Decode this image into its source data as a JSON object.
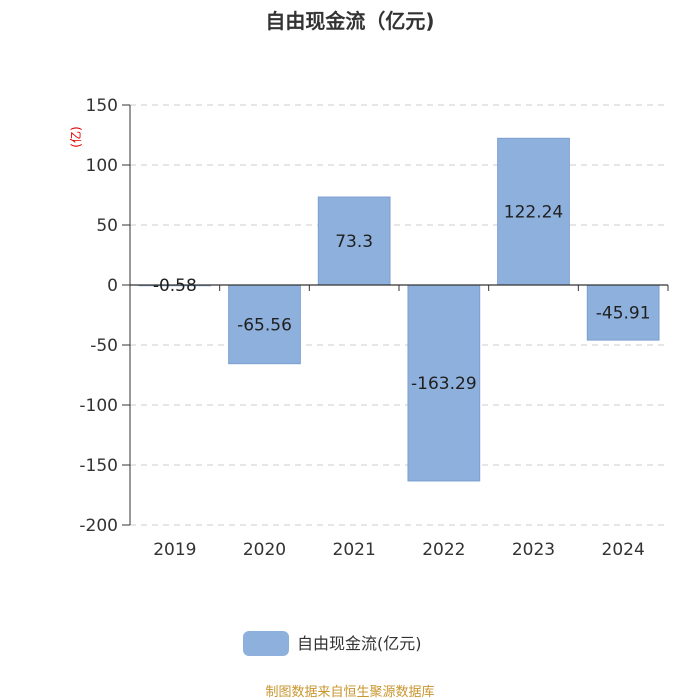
{
  "chart_data": {
    "type": "bar",
    "title": "自由现金流（亿元)",
    "ylabel": "(亿)",
    "categories": [
      "2019",
      "2020",
      "2021",
      "2022",
      "2023",
      "2024"
    ],
    "series": [
      {
        "name": "自由现金流(亿元)",
        "values": [
          -0.58,
          -65.56,
          73.3,
          -163.29,
          122.24,
          -45.91
        ]
      }
    ],
    "data_labels": [
      "-0.58",
      "-65.56",
      "73.3",
      "-163.29",
      "122.24",
      "-45.91"
    ],
    "ylim": [
      -200,
      150
    ],
    "yticks": [
      150,
      100,
      50,
      0,
      -50,
      -100,
      -150,
      -200
    ],
    "ytick_labels": [
      "150",
      "100",
      "50",
      "0",
      "-50",
      "-100",
      "-150",
      "-200"
    ],
    "grid": true,
    "legend_position": "bottom-center",
    "bar_color": "#8eb0dc",
    "bar_border_color": "#7d9fd0",
    "axis_color": "#333333",
    "grid_color": "#cccccc"
  },
  "source_text": "制图数据来自恒生聚源数据库"
}
